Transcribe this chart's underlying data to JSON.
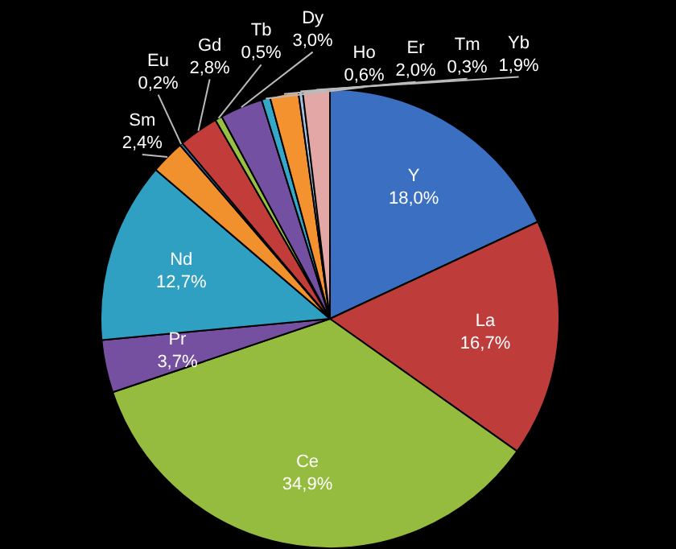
{
  "chart_data": {
    "type": "pie",
    "categories": [
      "Y",
      "La",
      "Ce",
      "Pr",
      "Nd",
      "Sm",
      "Eu",
      "Gd",
      "Tb",
      "Dy",
      "Ho",
      "Er",
      "Tm",
      "Yb"
    ],
    "values": [
      18.0,
      16.7,
      34.9,
      3.7,
      12.7,
      2.4,
      0.2,
      2.8,
      0.5,
      3.0,
      0.6,
      2.0,
      0.3,
      1.9
    ],
    "value_labels": [
      "18,0%",
      "16,7%",
      "34,9%",
      "3,7%",
      "12,7%",
      "2,4%",
      "0,2%",
      "2,8%",
      "0,5%",
      "3,0%",
      "0,6%",
      "2,0%",
      "0,3%",
      "1,9%"
    ],
    "colors": [
      "#3b6fc1",
      "#be3c3a",
      "#95bc3e",
      "#7650a0",
      "#2fa0c2",
      "#f0912d",
      "#4a78c6",
      "#c23c3a",
      "#98c042",
      "#7450a2",
      "#33a8c9",
      "#f3922f",
      "#a9c0e6",
      "#e3a7a5"
    ],
    "legend": false
  }
}
